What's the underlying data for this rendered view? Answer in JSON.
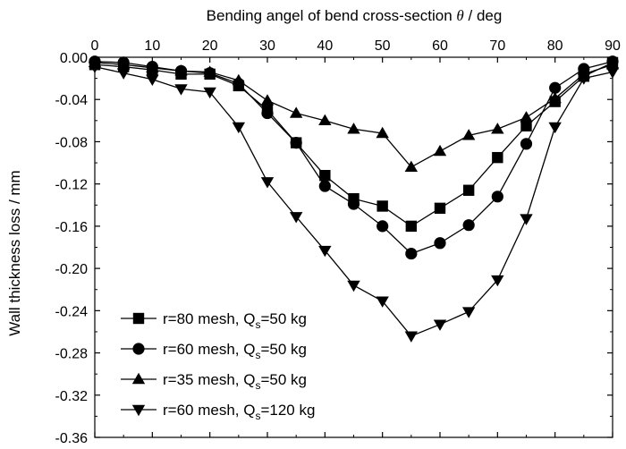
{
  "chart_data": {
    "type": "line",
    "title": "",
    "xlabel": "Bending angel of bend cross-section",
    "xlabel_symbol": "θ",
    "xlabel_unit": " / deg",
    "ylabel": "Wall thickness loss / mm",
    "xaxis_position": "top",
    "xlim": [
      0,
      90
    ],
    "ylim": [
      -0.36,
      0.0
    ],
    "xticks": [
      "0",
      "10",
      "20",
      "30",
      "40",
      "50",
      "60",
      "70",
      "80",
      "90"
    ],
    "yticks": [
      "0.00",
      "-0.04",
      "-0.08",
      "-0.12",
      "-0.16",
      "-0.20",
      "-0.24",
      "-0.28",
      "-0.32",
      "-0.36"
    ],
    "x": [
      0,
      5,
      10,
      15,
      20,
      25,
      30,
      35,
      40,
      45,
      50,
      55,
      60,
      65,
      70,
      75,
      80,
      85,
      90
    ],
    "grid": false,
    "legend_position": "bottom-left",
    "series": [
      {
        "legend_prefix": "r=80 mesh, Q",
        "legend_sub": "s",
        "legend_suffix": "=50 kg",
        "marker": "square",
        "values": [
          -0.007,
          -0.009,
          -0.012,
          -0.016,
          -0.016,
          -0.027,
          -0.05,
          -0.081,
          -0.112,
          -0.134,
          -0.141,
          -0.16,
          -0.143,
          -0.126,
          -0.095,
          -0.065,
          -0.042,
          -0.018,
          -0.005
        ]
      },
      {
        "legend_prefix": "r=60 mesh, Q",
        "legend_sub": "s",
        "legend_suffix": "=50 kg",
        "marker": "circle",
        "values": [
          -0.004,
          -0.005,
          -0.009,
          -0.013,
          -0.015,
          -0.025,
          -0.053,
          -0.081,
          -0.122,
          -0.139,
          -0.16,
          -0.186,
          -0.176,
          -0.159,
          -0.132,
          -0.082,
          -0.029,
          -0.011,
          -0.004
        ]
      },
      {
        "legend_prefix": "r=35 mesh, Q",
        "legend_sub": "s",
        "legend_suffix": "=50 kg",
        "marker": "triangle-up",
        "values": [
          -0.005,
          -0.007,
          -0.01,
          -0.013,
          -0.014,
          -0.022,
          -0.041,
          -0.053,
          -0.06,
          -0.068,
          -0.072,
          -0.104,
          -0.089,
          -0.074,
          -0.068,
          -0.057,
          -0.039,
          -0.016,
          -0.007
        ]
      },
      {
        "legend_prefix": "r=60 mesh, Q",
        "legend_sub": "s",
        "legend_suffix": "=120 kg",
        "marker": "triangle-down",
        "values": [
          -0.009,
          -0.015,
          -0.021,
          -0.03,
          -0.033,
          -0.066,
          -0.118,
          -0.151,
          -0.183,
          -0.216,
          -0.231,
          -0.264,
          -0.253,
          -0.241,
          -0.211,
          -0.153,
          -0.066,
          -0.02,
          -0.014
        ]
      }
    ]
  }
}
